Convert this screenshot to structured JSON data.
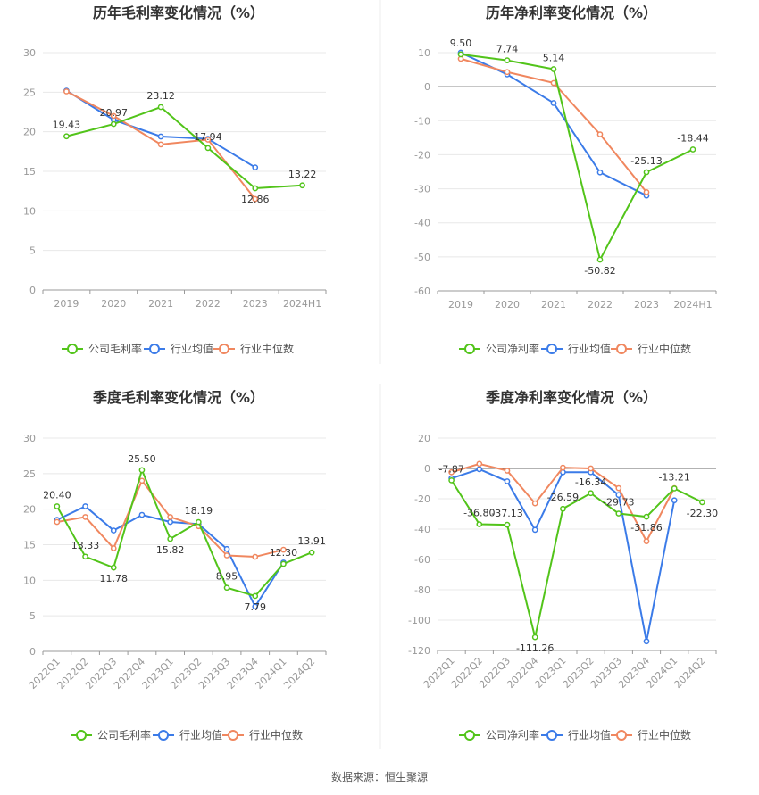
{
  "source_text": "数据来源：恒生聚源",
  "colors": {
    "company": "#52c41a",
    "avg": "#3b7be8",
    "median": "#f0875f"
  },
  "legend_gross": [
    "公司毛利率",
    "行业均值",
    "行业中位数"
  ],
  "legend_net": [
    "公司净利率",
    "行业均值",
    "行业中位数"
  ],
  "chart_data": [
    {
      "type": "line",
      "title": "历年毛利率变化情况（%）",
      "categories": [
        "2019",
        "2020",
        "2021",
        "2022",
        "2023",
        "2024H1"
      ],
      "ylim": [
        0,
        30
      ],
      "yticks": [
        0,
        5,
        10,
        15,
        20,
        25,
        30
      ],
      "label_series": 0,
      "series": [
        {
          "name": "公司毛利率",
          "values": [
            19.43,
            20.97,
            23.12,
            17.94,
            12.86,
            13.22
          ]
        },
        {
          "name": "行业均值",
          "values": [
            25.2,
            21.5,
            19.4,
            19.1,
            15.5,
            null
          ]
        },
        {
          "name": "行业中位数",
          "values": [
            25.1,
            22.0,
            18.4,
            19.0,
            11.5,
            null
          ]
        }
      ]
    },
    {
      "type": "line",
      "title": "历年净利率变化情况（%）",
      "categories": [
        "2019",
        "2020",
        "2021",
        "2022",
        "2023",
        "2024H1"
      ],
      "ylim": [
        -60,
        10
      ],
      "yticks": [
        -60,
        -50,
        -40,
        -30,
        -20,
        -10,
        0,
        10
      ],
      "label_series": 0,
      "series": [
        {
          "name": "公司净利率",
          "values": [
            9.5,
            7.74,
            5.14,
            -50.82,
            -25.13,
            -18.44
          ]
        },
        {
          "name": "行业均值",
          "values": [
            10.0,
            3.6,
            -4.8,
            -25.2,
            -32.0,
            null
          ]
        },
        {
          "name": "行业中位数",
          "values": [
            8.2,
            4.3,
            1.1,
            -14.0,
            -31.0,
            null
          ]
        }
      ]
    },
    {
      "type": "line",
      "title": "季度毛利率变化情况（%）",
      "categories": [
        "2022Q1",
        "2022Q2",
        "2022Q3",
        "2022Q4",
        "2023Q1",
        "2023Q2",
        "2023Q3",
        "2023Q4",
        "2024Q1",
        "2024Q2"
      ],
      "ylim": [
        0,
        30
      ],
      "yticks": [
        0,
        5,
        10,
        15,
        20,
        25,
        30
      ],
      "label_series": 0,
      "series": [
        {
          "name": "公司毛利率",
          "values": [
            20.4,
            13.33,
            11.78,
            25.5,
            15.82,
            18.19,
            8.95,
            7.79,
            12.3,
            13.91
          ]
        },
        {
          "name": "行业均值",
          "values": [
            18.5,
            20.4,
            17.0,
            19.2,
            18.2,
            17.9,
            14.4,
            6.3,
            12.5,
            null
          ]
        },
        {
          "name": "行业中位数",
          "values": [
            18.2,
            18.9,
            14.5,
            24.0,
            18.9,
            17.6,
            13.5,
            13.3,
            14.3,
            null
          ]
        }
      ]
    },
    {
      "type": "line",
      "title": "季度净利率变化情况（%）",
      "categories": [
        "2022Q1",
        "2022Q2",
        "2022Q3",
        "2022Q4",
        "2023Q1",
        "2023Q2",
        "2023Q3",
        "2023Q4",
        "2024Q1",
        "2024Q2"
      ],
      "ylim": [
        -120,
        20
      ],
      "yticks": [
        -120,
        -100,
        -80,
        -60,
        -40,
        -20,
        0,
        20
      ],
      "label_series": 0,
      "series": [
        {
          "name": "公司净利率",
          "values": [
            -7.87,
            -36.8,
            -37.13,
            -111.26,
            -26.59,
            -16.34,
            -29.73,
            -31.86,
            -13.21,
            -22.3
          ]
        },
        {
          "name": "行业均值",
          "values": [
            -6.5,
            -0.5,
            -8.5,
            -40.5,
            -2.5,
            -2.5,
            -17.5,
            -114.0,
            -21.0,
            null
          ]
        },
        {
          "name": "行业中位数",
          "values": [
            -2.5,
            3.0,
            -1.5,
            -23.0,
            0.5,
            0.0,
            -13.0,
            -48.0,
            -13.0,
            null
          ]
        }
      ]
    }
  ]
}
